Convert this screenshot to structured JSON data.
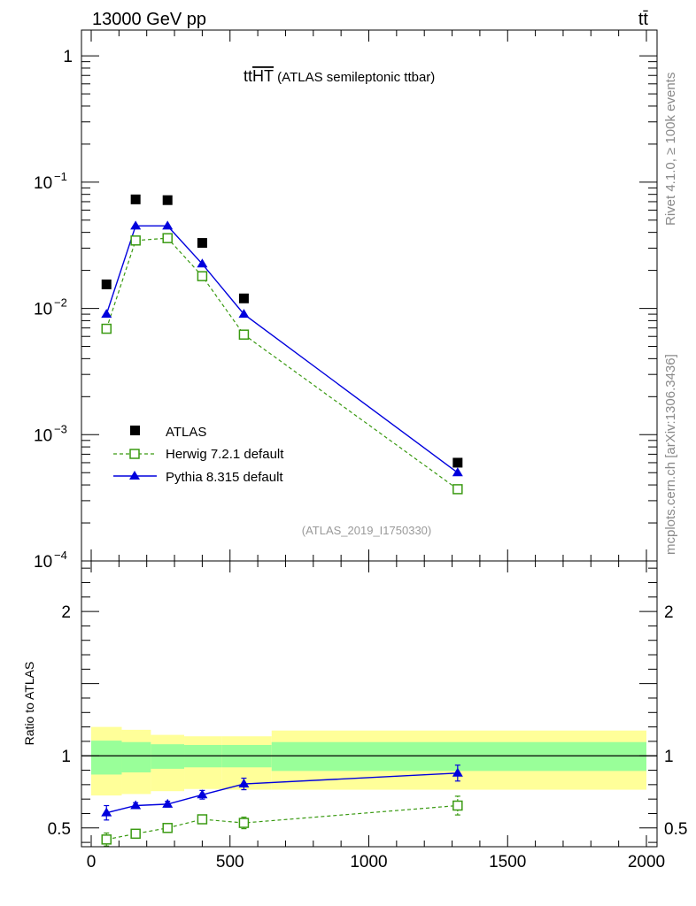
{
  "header": {
    "energy_label": "13000 GeV pp",
    "process_label": "tt̄"
  },
  "side_labels": {
    "rivet": "Rivet 4.1.0, ≥ 100k events",
    "mcplots": "mcplots.cern.ch [arXiv:1306.3436]"
  },
  "chart_data": {
    "type": "line",
    "title_main": "ttHT",
    "title_overline": "HT",
    "title_prefix": "tt",
    "title_suffix": " (ATLAS semileptonic ttbar)",
    "analysis_id": "(ATLAS_2019_I1750330)",
    "xlabel": "",
    "ylabel_ratio": "Ratio to ATLAS",
    "xlim": [
      -40,
      2020
    ],
    "ylim_main_log": [
      0.0001,
      1.6
    ],
    "ylim_ratio": [
      0.37,
      2.35
    ],
    "x_ticks": [
      {
        "value": 0,
        "label": "0"
      },
      {
        "value": 500,
        "label": "500"
      },
      {
        "value": 1000,
        "label": "1000"
      },
      {
        "value": 1500,
        "label": "1500"
      },
      {
        "value": 2000,
        "label": "2000"
      }
    ],
    "y_ticks_main": [
      {
        "value": 1,
        "base": "1",
        "exp": ""
      },
      {
        "value": 0.1,
        "base": "10",
        "exp": "−1"
      },
      {
        "value": 0.01,
        "base": "10",
        "exp": "−2"
      },
      {
        "value": 0.001,
        "base": "10",
        "exp": "−3"
      },
      {
        "value": 0.0001,
        "base": "10",
        "exp": "−4"
      }
    ],
    "y_ticks_ratio": [
      {
        "value": 0.5,
        "label": "0.5"
      },
      {
        "value": 1,
        "label": "1"
      },
      {
        "value": 2,
        "label": "2"
      }
    ],
    "legend": {
      "position": "lower-left",
      "entries": [
        {
          "label": "ATLAS",
          "series": "atlas"
        },
        {
          "label": "Herwig 7.2.1 default",
          "series": "herwig"
        },
        {
          "label": "Pythia 8.315 default",
          "series": "pythia"
        }
      ]
    },
    "series": [
      {
        "name": "ATLAS",
        "key": "atlas",
        "color": "#000000",
        "marker": "square-filled",
        "x": [
          55,
          160,
          275,
          400,
          550,
          1320
        ],
        "y": [
          0.0155,
          0.073,
          0.072,
          0.033,
          0.012,
          0.0006
        ]
      },
      {
        "name": "Herwig 7.2.1 default",
        "key": "herwig",
        "color": "#3a9a12",
        "marker": "square-open",
        "dashed": true,
        "x": [
          55,
          160,
          275,
          400,
          550,
          1320
        ],
        "y": [
          0.0069,
          0.0345,
          0.036,
          0.018,
          0.0062,
          0.00037
        ],
        "ratio": [
          0.42,
          0.46,
          0.5,
          0.56,
          0.535,
          0.655
        ],
        "ratio_err": [
          0.045,
          0.015,
          0.015,
          0.03,
          0.04,
          0.065
        ]
      },
      {
        "name": "Pythia 8.315 default",
        "key": "pythia",
        "color": "#0000dd",
        "marker": "triangle-filled",
        "x": [
          55,
          160,
          275,
          400,
          550,
          1320
        ],
        "y": [
          0.009,
          0.045,
          0.045,
          0.0225,
          0.009,
          0.0005
        ],
        "ratio": [
          0.605,
          0.655,
          0.665,
          0.73,
          0.805,
          0.88
        ],
        "ratio_err": [
          0.05,
          0.02,
          0.02,
          0.03,
          0.04,
          0.055
        ]
      }
    ],
    "uncertainty_bands": [
      {
        "x0": 0,
        "x1": 110,
        "yellow": [
          0.725,
          1.2
        ],
        "green": [
          0.87,
          1.105
        ]
      },
      {
        "x0": 110,
        "x1": 215,
        "yellow": [
          0.735,
          1.18
        ],
        "green": [
          0.885,
          1.095
        ]
      },
      {
        "x0": 215,
        "x1": 335,
        "yellow": [
          0.755,
          1.145
        ],
        "green": [
          0.91,
          1.08
        ]
      },
      {
        "x0": 335,
        "x1": 470,
        "yellow": [
          0.77,
          1.135
        ],
        "green": [
          0.92,
          1.075
        ]
      },
      {
        "x0": 470,
        "x1": 650,
        "yellow": [
          0.765,
          1.135
        ],
        "green": [
          0.92,
          1.075
        ]
      },
      {
        "x0": 650,
        "x1": 2000,
        "yellow": [
          0.765,
          1.175
        ],
        "green": [
          0.895,
          1.095
        ]
      }
    ],
    "colors": {
      "yellow_band": "#ffff99",
      "green_band": "#99ff99",
      "analysis_label": "#999999"
    }
  }
}
